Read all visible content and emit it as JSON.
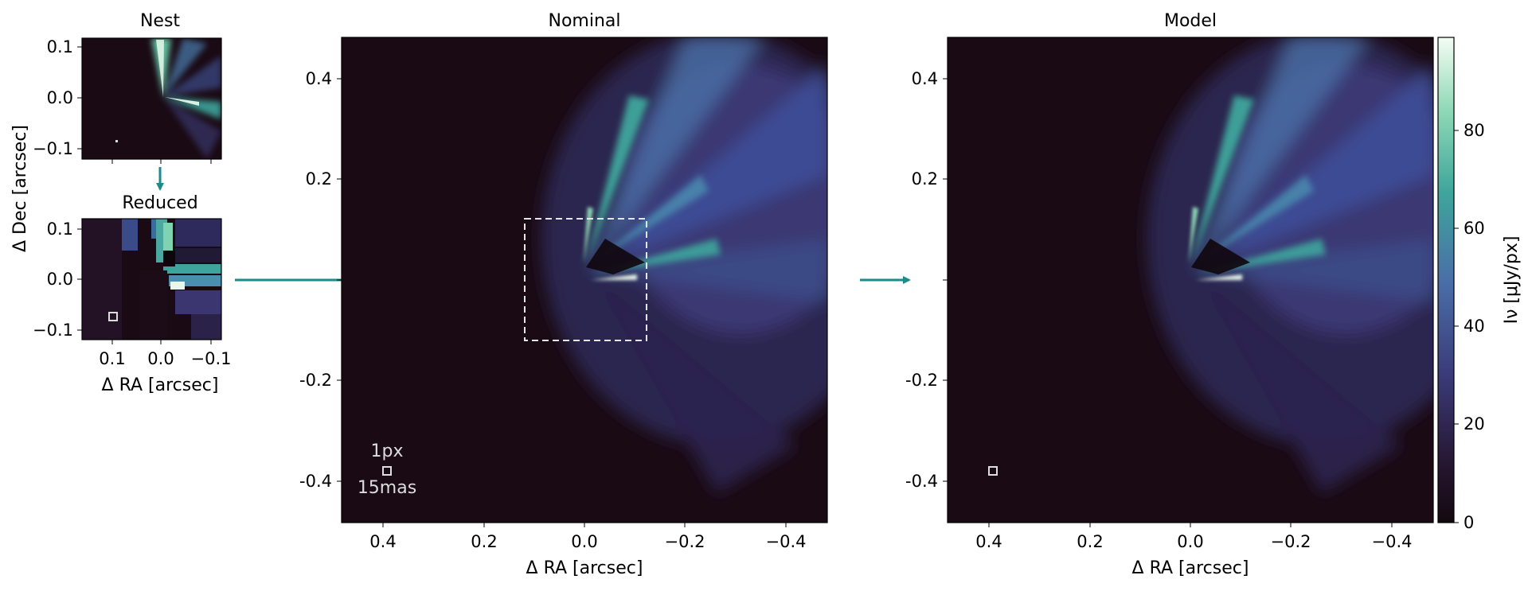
{
  "panels": {
    "nest": {
      "title": "Nest",
      "x_ticks": [
        "",
        "",
        ""
      ],
      "y_ticks": [
        "0.1",
        "0.0",
        "−0.1"
      ]
    },
    "reduced": {
      "title": "Reduced",
      "xlabel": "Δ RA [arcsec]",
      "x_ticks": [
        "0.1",
        "0.0",
        "−0.1"
      ],
      "y_ticks": [
        "0.1",
        "0.0",
        "−0.1"
      ]
    },
    "shared_ylabel": "Δ Dec [arcsec]",
    "nominal": {
      "title": "Nominal",
      "xlabel": "Δ RA [arcsec]",
      "x_ticks": [
        "0.4",
        "0.2",
        "0.0",
        "−0.2",
        "−0.4"
      ],
      "y_ticks": [
        "0.4",
        "0.2",
        "-0.2",
        "-0.4"
      ],
      "scale_label_top": "1px",
      "scale_label_bottom": "15mas"
    },
    "model": {
      "title": "Model",
      "xlabel": "Δ RA [arcsec]",
      "x_ticks": [
        "0.4",
        "0.2",
        "0.0",
        "−0.2",
        "−0.4"
      ],
      "y_ticks": [
        "0.4",
        "0.2",
        "-0.2",
        "-0.4"
      ]
    },
    "colorbar": {
      "label": "Iν [μJy/px]",
      "ticks": [
        "0",
        "20",
        "40",
        "60",
        "80"
      ]
    }
  },
  "colors": {
    "arrow": "#1a8c8a",
    "background": "#1a0a14",
    "colormap": [
      "#140810",
      "#2b1a3a",
      "#3b3a78",
      "#4a70a8",
      "#3ea5a0",
      "#7fd3b0",
      "#f2fbf3"
    ]
  },
  "chart_data": [
    {
      "type": "heatmap",
      "title": "Nest",
      "xlim": [
        0.12,
        -0.12
      ],
      "ylim": [
        -0.12,
        0.12
      ],
      "description_values": "high-resolution nested grid of the inner disk"
    },
    {
      "type": "heatmap",
      "title": "Reduced",
      "xlabel": "Δ RA [arcsec]",
      "ylabel": "Δ Dec [arcsec]",
      "xlim": [
        0.12,
        -0.12
      ],
      "ylim": [
        -0.12,
        0.12
      ]
    },
    {
      "type": "heatmap",
      "title": "Nominal",
      "xlabel": "Δ RA [arcsec]",
      "xlim": [
        0.48,
        -0.48
      ],
      "ylim": [
        -0.48,
        0.48
      ],
      "pixel_scale_mas": 15
    },
    {
      "type": "heatmap",
      "title": "Model",
      "xlabel": "Δ RA [arcsec]",
      "xlim": [
        0.48,
        -0.48
      ],
      "ylim": [
        -0.48,
        0.48
      ],
      "colorbar_range": [
        0,
        98
      ],
      "colorbar_label": "Iν [μJy/px]"
    }
  ]
}
